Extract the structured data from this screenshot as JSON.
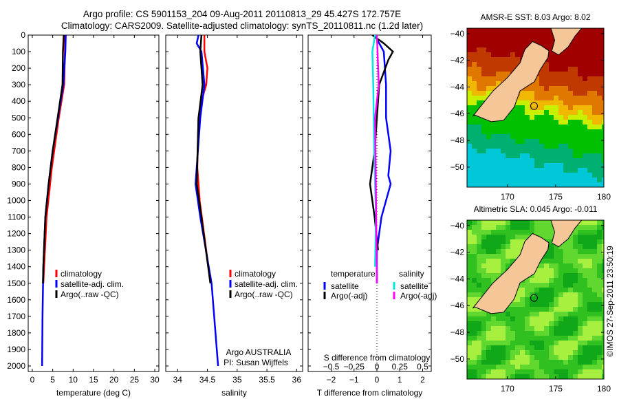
{
  "title_line1": "Argo profile: CS 5901153_204 09-Aug-2011 20110813_29 45.427S 172.757E",
  "title_line2": "Climatology: CARS2009. Satellite-adjusted climatology: synTS_20110811.nc (1.2d later)",
  "credit": "Argo AUSTRALIA",
  "pi": "PI: Susan Wijffels",
  "stamp": "©IMOS 27-Sep-2011 23:50:19",
  "colors": {
    "climatology": "#ff0000",
    "satellite": "#0000ff",
    "argo": "#000000",
    "s_satellite": "#00e5e5",
    "s_argo": "#ff00ff"
  },
  "chart_data": [
    {
      "type": "line",
      "name": "temperature",
      "xlabel": "temperature (deg C)",
      "ylabel": "",
      "xlim": [
        -1,
        31
      ],
      "ylim": [
        2050,
        0
      ],
      "xticks": [
        0,
        5,
        10,
        15,
        20,
        25,
        30
      ],
      "yticks": [
        0,
        100,
        200,
        300,
        400,
        500,
        600,
        700,
        800,
        900,
        1000,
        1100,
        1200,
        1300,
        1400,
        1500,
        1600,
        1700,
        1800,
        1900,
        2000
      ],
      "legend": [
        "climatology",
        "satellite-adj. clim.",
        "Argo(..raw -QC)"
      ],
      "series": [
        {
          "name": "climatology",
          "color": "#ff0000",
          "points": [
            [
              8,
              0
            ],
            [
              8,
              100
            ],
            [
              7.8,
              300
            ],
            [
              6.5,
              500
            ],
            [
              4.8,
              800
            ],
            [
              3.5,
              1100
            ],
            [
              2.7,
              1500
            ]
          ]
        },
        {
          "name": "satellite-adj. clim.",
          "color": "#0000ff",
          "points": [
            [
              8.2,
              0
            ],
            [
              8.1,
              100
            ],
            [
              7.6,
              300
            ],
            [
              6.3,
              500
            ],
            [
              5,
              700
            ],
            [
              4,
              900
            ],
            [
              3.2,
              1100
            ],
            [
              2.7,
              1400
            ],
            [
              2.5,
              1700
            ],
            [
              2.4,
              2000
            ]
          ]
        },
        {
          "name": "Argo(..raw -QC)",
          "color": "#000000",
          "points": [
            [
              7.7,
              0
            ],
            [
              7.5,
              100
            ],
            [
              7.4,
              300
            ],
            [
              6.2,
              500
            ],
            [
              5,
              700
            ],
            [
              4,
              900
            ],
            [
              3.2,
              1100
            ],
            [
              2.7,
              1400
            ],
            [
              2.6,
              1500
            ]
          ]
        }
      ]
    },
    {
      "type": "line",
      "name": "salinity",
      "xlabel": "salinity",
      "xlim": [
        33.8,
        36.1
      ],
      "ylim": [
        2050,
        0
      ],
      "xticks": [
        34,
        34.5,
        35,
        35.5,
        36
      ],
      "legend": [
        "climatology",
        "satellite-adj. clim.",
        "Argo(..raw -QC)"
      ],
      "series": [
        {
          "name": "climatology",
          "color": "#ff0000",
          "points": [
            [
              34.45,
              0
            ],
            [
              34.45,
              100
            ],
            [
              34.5,
              200
            ],
            [
              34.48,
              300
            ],
            [
              34.4,
              400
            ],
            [
              34.35,
              500
            ],
            [
              34.33,
              800
            ],
            [
              34.37,
              1000
            ],
            [
              34.48,
              1300
            ],
            [
              34.55,
              1500
            ]
          ]
        },
        {
          "name": "satellite-adj. clim.",
          "color": "#0000ff",
          "points": [
            [
              34.35,
              0
            ],
            [
              34.32,
              50
            ],
            [
              34.4,
              100
            ],
            [
              34.45,
              300
            ],
            [
              34.38,
              500
            ],
            [
              34.3,
              900
            ],
            [
              34.38,
              1100
            ],
            [
              34.57,
              1500
            ],
            [
              34.68,
              2000
            ]
          ]
        },
        {
          "name": "Argo(..raw -QC)",
          "color": "#000000",
          "points": [
            [
              34.4,
              0
            ],
            [
              34.38,
              100
            ],
            [
              34.42,
              300
            ],
            [
              34.35,
              500
            ],
            [
              34.32,
              900
            ],
            [
              34.4,
              1100
            ],
            [
              34.55,
              1500
            ]
          ]
        }
      ]
    },
    {
      "type": "line",
      "name": "difference",
      "xlabel": "T difference from climatology",
      "x2label": "S difference from climatology",
      "xlim": [
        -3,
        3
      ],
      "ylim": [
        2050,
        0
      ],
      "xticks": [
        -2,
        -1,
        0,
        1,
        2
      ],
      "x2ticks": [
        -0.5,
        -0.25,
        0,
        0.25,
        0.5
      ],
      "legend_titles": [
        "temperature",
        "salinity"
      ],
      "legend": [
        "satellite",
        "Argo(-adj)",
        "satellite",
        "Argo(-adj)"
      ],
      "series": [
        {
          "name": "T satellite",
          "unit": "T",
          "color": "#0000ff",
          "points": [
            [
              -0.1,
              0
            ],
            [
              0.3,
              100
            ],
            [
              0.4,
              300
            ],
            [
              0.4,
              500
            ],
            [
              0.6,
              700
            ],
            [
              0.5,
              850
            ],
            [
              0.6,
              900
            ],
            [
              0.2,
              1100
            ],
            [
              0,
              1300
            ],
            [
              0,
              1500
            ]
          ]
        },
        {
          "name": "T Argo(-adj)",
          "unit": "T",
          "color": "#000000",
          "points": [
            [
              -0.2,
              0
            ],
            [
              0.3,
              50
            ],
            [
              0.7,
              100
            ],
            [
              0.5,
              150
            ],
            [
              0.1,
              300
            ],
            [
              -0.1,
              700
            ],
            [
              -0.3,
              900
            ],
            [
              -0.1,
              1100
            ],
            [
              0.05,
              1300
            ]
          ]
        },
        {
          "name": "S satellite",
          "unit": "S",
          "color": "#00e5e5",
          "points": [
            [
              -0.02,
              0
            ],
            [
              -0.05,
              100
            ],
            [
              -0.04,
              300
            ],
            [
              -0.03,
              700
            ],
            [
              -0.01,
              1100
            ],
            [
              -0.02,
              1400
            ]
          ]
        },
        {
          "name": "S Argo(-adj)",
          "unit": "S",
          "color": "#ff00ff",
          "points": [
            [
              0,
              0
            ],
            [
              0.02,
              300
            ],
            [
              -0.02,
              500
            ],
            [
              -0.01,
              1000
            ],
            [
              0,
              1500
            ]
          ]
        }
      ]
    },
    {
      "type": "heatmap",
      "name": "sst-map",
      "title": "AMSR-E SST: 8.03 Argo: 8.02",
      "xticks": [
        170,
        175,
        180
      ],
      "yticks": [
        -40,
        -42,
        -44,
        -46,
        -48,
        -50
      ],
      "xlim": [
        165.8,
        180
      ],
      "ylim": [
        -51.5,
        -39.6
      ]
    },
    {
      "type": "heatmap",
      "name": "sla-map",
      "title": "Altimetric SLA: 0.045 Argo: -0.011",
      "xticks": [
        170,
        175,
        180
      ],
      "yticks": [
        -40,
        -42,
        -44,
        -46,
        -48,
        -50
      ],
      "xlim": [
        165.8,
        180
      ],
      "ylim": [
        -51.5,
        -39.6
      ]
    }
  ]
}
